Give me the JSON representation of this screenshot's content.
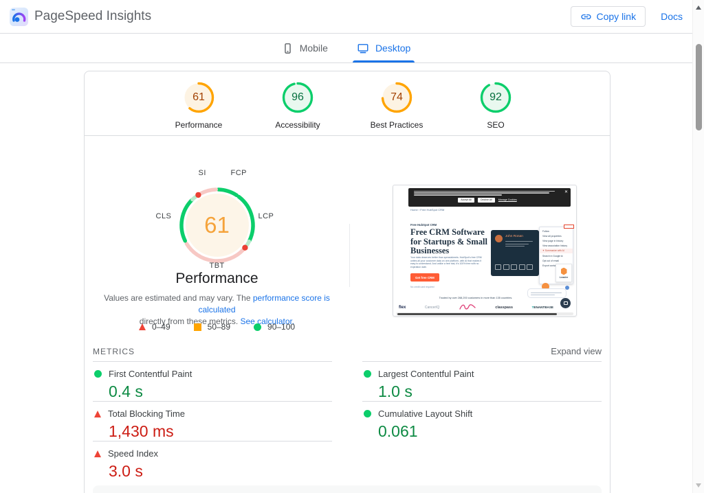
{
  "colors": {
    "accent_blue": "#1a73e8",
    "good_green": "#0cce6b",
    "average_orange": "#ffa400",
    "poor_red": "#ee4437",
    "gauge_center_text": "#f5a33b",
    "metric_good_text": "#0d8a43",
    "metric_poor_text": "#cc1c13",
    "card_border": "#dadce0",
    "thumb_cta_orange": "#ff5c35"
  },
  "header": {
    "title": "PageSpeed Insights",
    "copy_link_label": "Copy link",
    "docs_label": "Docs"
  },
  "tabs": [
    {
      "label": "Mobile",
      "active": false
    },
    {
      "label": "Desktop",
      "active": true
    }
  ],
  "scores": [
    {
      "label": "Performance",
      "value": 61,
      "status": "average"
    },
    {
      "label": "Accessibility",
      "value": 96,
      "status": "good"
    },
    {
      "label": "Best Practices",
      "value": 74,
      "status": "average"
    },
    {
      "label": "SEO",
      "value": 92,
      "status": "good"
    }
  ],
  "gauge": {
    "score": 61,
    "title": "Performance",
    "labels": {
      "si": "SI",
      "fcp": "FCP",
      "lcp": "LCP",
      "tbt": "TBT",
      "cls": "CLS"
    },
    "segments": [
      {
        "metric": "FCP",
        "from": 2,
        "to": 33,
        "color": "#0cce6b"
      },
      {
        "metric": "LCP",
        "from": 37,
        "to": 116,
        "color": "#0cce6b"
      },
      {
        "metric": "LCP-tail",
        "from": 117,
        "to": 124,
        "color": "#b9ebcd"
      },
      {
        "metric": "TBT",
        "from": 134,
        "to": 239,
        "color": "#f7c8c4"
      },
      {
        "metric": "CLS",
        "from": 244,
        "to": 315,
        "color": "#0cce6b"
      },
      {
        "metric": "CLS-tail",
        "from": 316,
        "to": 322,
        "color": "#b9ebcd"
      },
      {
        "metric": "SI",
        "from": 333,
        "to": 358,
        "color": "#f7c8c4"
      }
    ],
    "dots": [
      {
        "angle": 129,
        "color": "#eb4034"
      },
      {
        "angle": 328,
        "color": "#eb4034"
      }
    ]
  },
  "disclaimer": {
    "line1_pre": "Values are estimated and may vary. The ",
    "line1_link": "performance score is calculated",
    "line2_pre": "directly from these metrics. ",
    "line2_link": "See calculator."
  },
  "legend": [
    {
      "marker": "triangle",
      "color": "#ee4437",
      "label": "0–49"
    },
    {
      "marker": "square",
      "color": "#ffa400",
      "label": "50–89"
    },
    {
      "marker": "circle",
      "color": "#0cce6b",
      "label": "90–100"
    }
  ],
  "metrics": {
    "heading": "METRICS",
    "expand_label": "Expand view",
    "items": [
      {
        "name": "First Contentful Paint",
        "value": "0.4 s",
        "status": "good"
      },
      {
        "name": "Largest Contentful Paint",
        "value": "1.0 s",
        "status": "good"
      },
      {
        "name": "Total Blocking Time",
        "value": "1,430 ms",
        "status": "poor"
      },
      {
        "name": "Cumulative Layout Shift",
        "value": "0.061",
        "status": "good"
      },
      {
        "name": "Speed Index",
        "value": "3.0 s",
        "status": "poor"
      }
    ]
  },
  "thumbnail": {
    "cookie_accept": "Accept All",
    "cookie_decline": "Decline All",
    "cookie_manage": "Manage Cookies",
    "cookie_close": "✕",
    "breadcrumb": "Home  ›  Free HubSpot CRM",
    "eyebrow": "Free HubSpot CRM",
    "heading": "Free CRM Software for Startups & Small Businesses",
    "paragraph": "Your data deserves better than spreadsheets. HubSpot's free CRM unites all your customer data on one platform, with AI that makes it easy to understand. And unlike a free trial, it's 100% free with no expiration date.",
    "cta": "Get free CRM",
    "cta_note": "No credit card required",
    "contact_name": "John Ronan",
    "menu": [
      "Follow",
      "View all properties",
      "View page in history",
      "View association history",
      "✦ Summarize with AI",
      "Search in Google ⧉",
      "Opt out of email",
      "Export contact data"
    ],
    "leader_badge": "Leader",
    "trusted": "Trusted by over 268,200 customers in more than 135 countries.",
    "logos": [
      "flex",
      "CancerIQ",
      "classpass",
      "TENANTBASE"
    ]
  }
}
